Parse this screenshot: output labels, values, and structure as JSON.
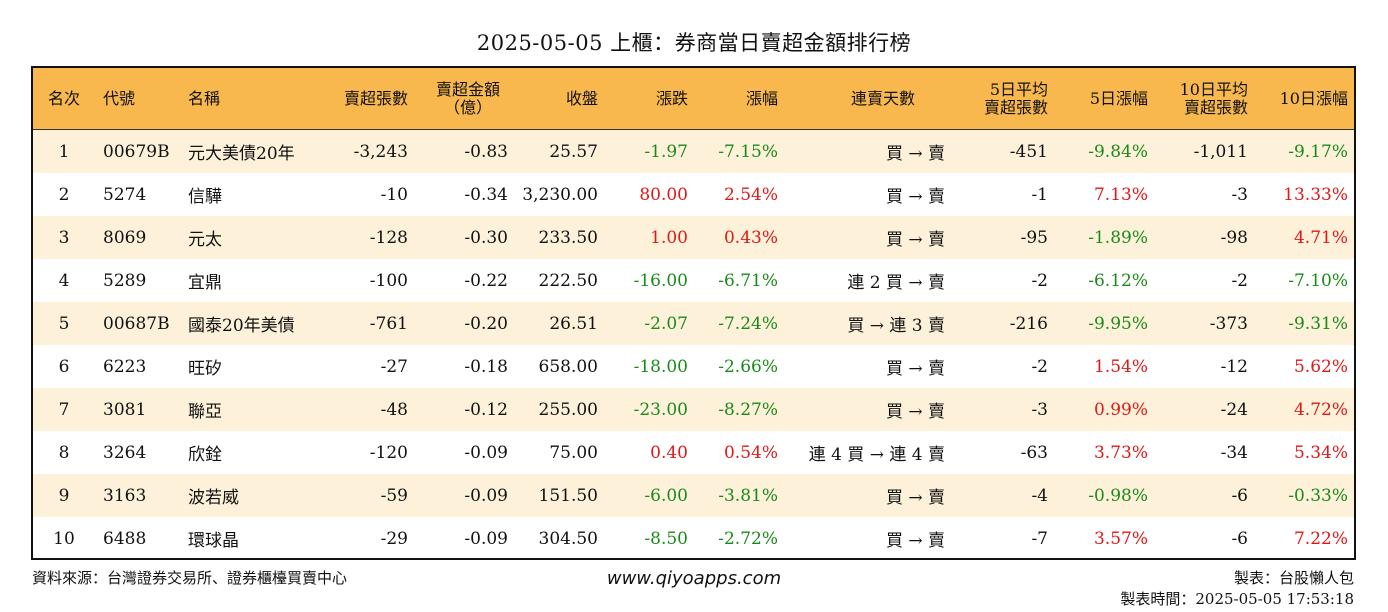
{
  "title": "2025-05-05 上櫃：券商當日賣超金額排行榜",
  "headers": {
    "rank": "名次",
    "code": "代號",
    "name": "名稱",
    "sell_lots": "賣超張數",
    "sell_amount_1": "賣超金額",
    "sell_amount_2": "（億）",
    "close": "收盤",
    "change": "漲跌",
    "change_pct": "漲幅",
    "streak": "連賣天數",
    "avg5_1": "5日平均",
    "avg5_2": "賣超張數",
    "pct5": "5日漲幅",
    "avg10_1": "10日平均",
    "avg10_2": "賣超張數",
    "pct10": "10日漲幅"
  },
  "rows": [
    {
      "rank": "1",
      "code": "00679B",
      "name": "元大美債20年",
      "sell_lots": "-3,243",
      "sell_amount": "-0.83",
      "close": "25.57",
      "change": "-1.97",
      "change_pct": "-7.15%",
      "streak": "買 → 賣",
      "avg5": "-451",
      "pct5": "-9.84%",
      "avg10": "-1,011",
      "pct10": "-9.17%"
    },
    {
      "rank": "2",
      "code": "5274",
      "name": "信驊",
      "sell_lots": "-10",
      "sell_amount": "-0.34",
      "close": "3,230.00",
      "change": "80.00",
      "change_pct": "2.54%",
      "streak": "買 → 賣",
      "avg5": "-1",
      "pct5": "7.13%",
      "avg10": "-3",
      "pct10": "13.33%"
    },
    {
      "rank": "3",
      "code": "8069",
      "name": "元太",
      "sell_lots": "-128",
      "sell_amount": "-0.30",
      "close": "233.50",
      "change": "1.00",
      "change_pct": "0.43%",
      "streak": "買 → 賣",
      "avg5": "-95",
      "pct5": "-1.89%",
      "avg10": "-98",
      "pct10": "4.71%"
    },
    {
      "rank": "4",
      "code": "5289",
      "name": "宜鼎",
      "sell_lots": "-100",
      "sell_amount": "-0.22",
      "close": "222.50",
      "change": "-16.00",
      "change_pct": "-6.71%",
      "streak": "連 2 買 → 賣",
      "avg5": "-2",
      "pct5": "-6.12%",
      "avg10": "-2",
      "pct10": "-7.10%"
    },
    {
      "rank": "5",
      "code": "00687B",
      "name": "國泰20年美債",
      "sell_lots": "-761",
      "sell_amount": "-0.20",
      "close": "26.51",
      "change": "-2.07",
      "change_pct": "-7.24%",
      "streak": "買 → 連 3 賣",
      "avg5": "-216",
      "pct5": "-9.95%",
      "avg10": "-373",
      "pct10": "-9.31%"
    },
    {
      "rank": "6",
      "code": "6223",
      "name": "旺矽",
      "sell_lots": "-27",
      "sell_amount": "-0.18",
      "close": "658.00",
      "change": "-18.00",
      "change_pct": "-2.66%",
      "streak": "買 → 賣",
      "avg5": "-2",
      "pct5": "1.54%",
      "avg10": "-12",
      "pct10": "5.62%"
    },
    {
      "rank": "7",
      "code": "3081",
      "name": "聯亞",
      "sell_lots": "-48",
      "sell_amount": "-0.12",
      "close": "255.00",
      "change": "-23.00",
      "change_pct": "-8.27%",
      "streak": "買 → 賣",
      "avg5": "-3",
      "pct5": "0.99%",
      "avg10": "-24",
      "pct10": "4.72%"
    },
    {
      "rank": "8",
      "code": "3264",
      "name": "欣銓",
      "sell_lots": "-120",
      "sell_amount": "-0.09",
      "close": "75.00",
      "change": "0.40",
      "change_pct": "0.54%",
      "streak": "連 4 買 → 連 4 賣",
      "avg5": "-63",
      "pct5": "3.73%",
      "avg10": "-34",
      "pct10": "5.34%"
    },
    {
      "rank": "9",
      "code": "3163",
      "name": "波若威",
      "sell_lots": "-59",
      "sell_amount": "-0.09",
      "close": "151.50",
      "change": "-6.00",
      "change_pct": "-3.81%",
      "streak": "買 → 賣",
      "avg5": "-4",
      "pct5": "-0.98%",
      "avg10": "-6",
      "pct10": "-0.33%"
    },
    {
      "rank": "10",
      "code": "6488",
      "name": "環球晶",
      "sell_lots": "-29",
      "sell_amount": "-0.09",
      "close": "304.50",
      "change": "-8.50",
      "change_pct": "-2.72%",
      "streak": "買 → 賣",
      "avg5": "-7",
      "pct5": "3.57%",
      "avg10": "-6",
      "pct10": "7.22%"
    }
  ],
  "footer": {
    "source": "資料來源：台灣證券交易所、證券櫃檯買賣中心",
    "website": "www.qiyoapps.com",
    "maker": "製表：台股懶人包",
    "made_time": "製表時間：2025-05-05 17:53:18"
  },
  "colors": {
    "header_bg": "#f8b84e",
    "alt_row_bg": "#fdf1da",
    "up": "#e01818",
    "down": "#1a8a1a"
  }
}
